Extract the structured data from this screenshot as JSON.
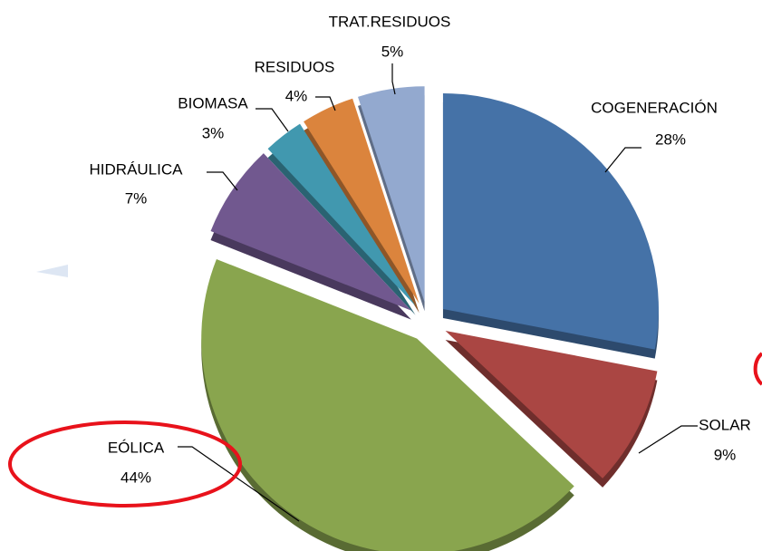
{
  "chart_data": {
    "type": "pie",
    "categories": [
      "COGENERACIÓN",
      "SOLAR",
      "EÓLICA",
      "HIDRÁULICA",
      "BIOMASA",
      "RESIDUOS",
      "TRAT.RESIDUOS"
    ],
    "values": [
      28,
      9,
      44,
      7,
      3,
      4,
      5
    ],
    "value_labels": [
      "28%",
      "9%",
      "44%",
      "7%",
      "3%",
      "4%",
      "5%"
    ],
    "colors": [
      "#4572a7",
      "#aa4643",
      "#89a54e",
      "#71588f",
      "#4198af",
      "#db843d",
      "#93a9cf"
    ]
  }
}
